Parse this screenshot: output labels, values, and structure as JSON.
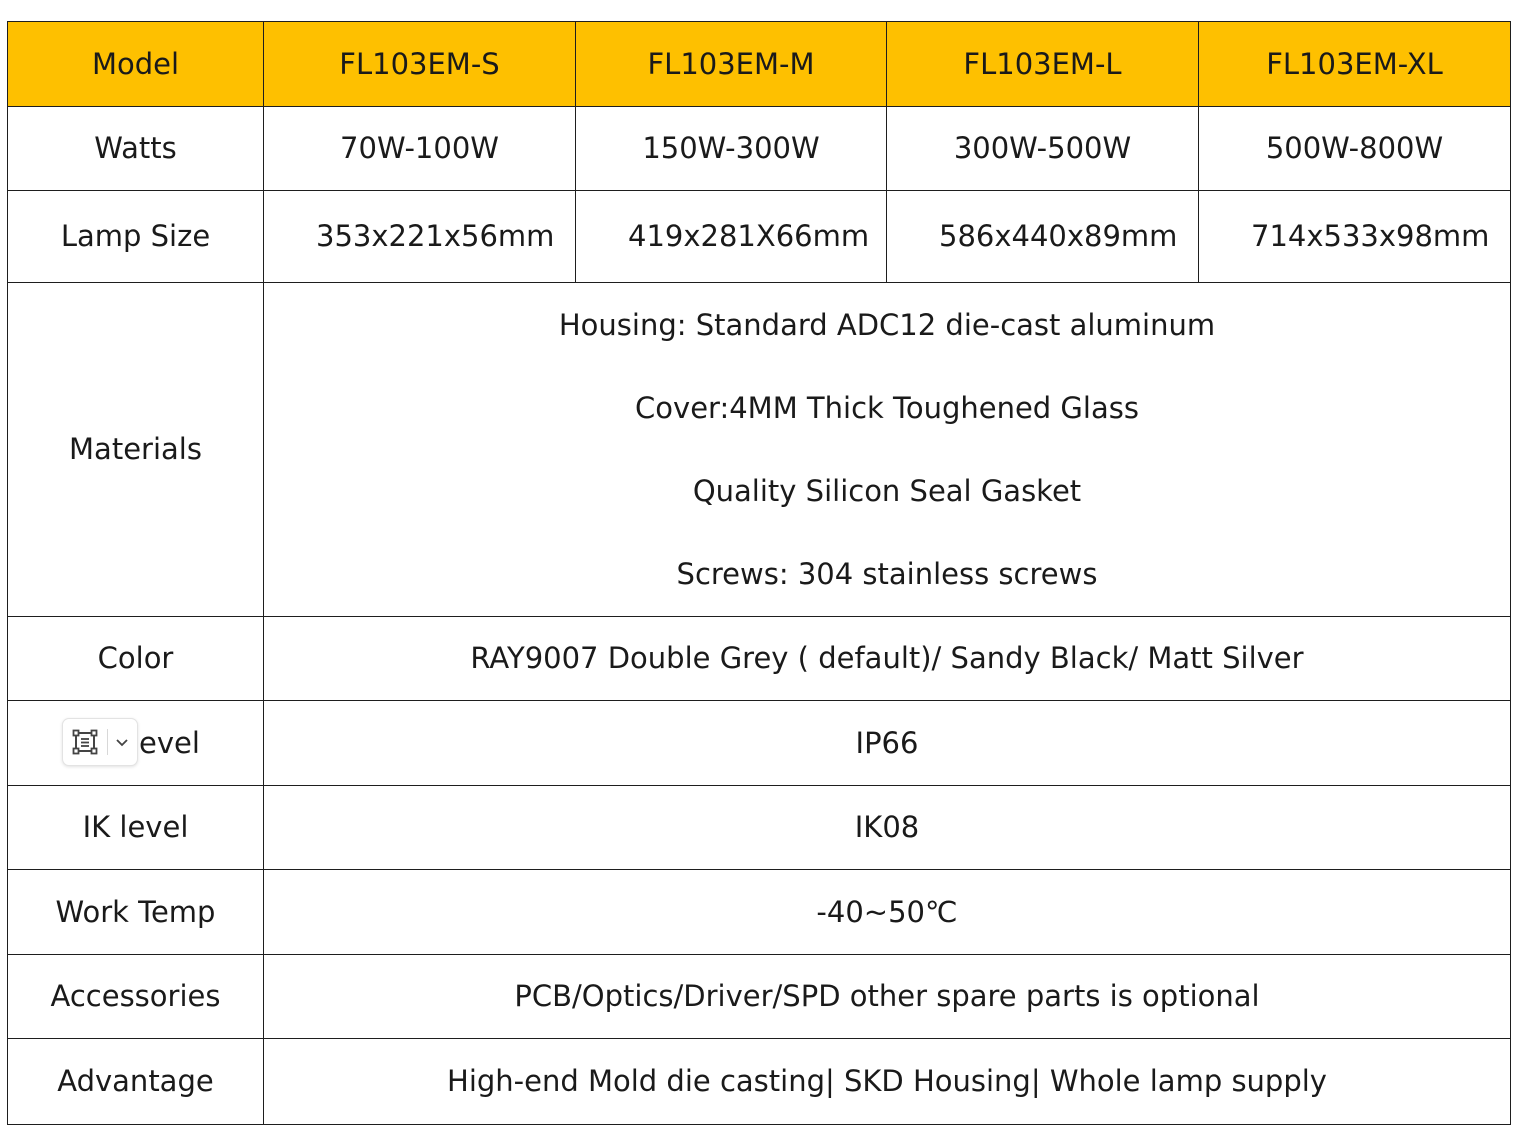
{
  "table": {
    "header": {
      "label": "Model",
      "models": [
        "FL103EM-S",
        "FL103EM-M",
        "FL103EM-L",
        "FL103EM-XL"
      ]
    },
    "watts": {
      "label": "Watts",
      "values": [
        "70W-100W",
        "150W-300W",
        "300W-500W",
        "500W-800W"
      ]
    },
    "lamp_size": {
      "label": "Lamp Size",
      "values": [
        "353x221x56mm",
        "419x281X66mm",
        "586x440x89mm",
        "714x533x98mm"
      ]
    },
    "materials": {
      "label": "Materials",
      "lines": [
        "Housing: Standard ADC12 die-cast aluminum",
        "Cover:4MM Thick Toughened Glass",
        "Quality Silicon Seal Gasket",
        "Screws: 304 stainless screws"
      ]
    },
    "color": {
      "label": "Color",
      "value": "RAY9007 Double Grey ( default)/ Sandy Black/ Matt Silver"
    },
    "ip_level": {
      "label": "evel",
      "value": "IP66"
    },
    "ik_level": {
      "label": "IK level",
      "value": "IK08"
    },
    "work_temp": {
      "label": "Work Temp",
      "value": "-40~50℃"
    },
    "accessories": {
      "label": "Accessories",
      "value": "PCB/Optics/Driver/SPD other spare parts is optional"
    },
    "advantage": {
      "label": "Advantage",
      "value": "High-end Mold die casting| SKD Housing| Whole lamp supply"
    }
  },
  "floating_toolbar": {
    "icons": [
      "select-frame-icon",
      "chevron-down-icon"
    ],
    "colors": {
      "border": "#e3e3e3",
      "icon": "#444444"
    }
  },
  "colors": {
    "header_bg": "#fec000",
    "border": "#1e1e1e",
    "text": "#1a1a1a"
  }
}
